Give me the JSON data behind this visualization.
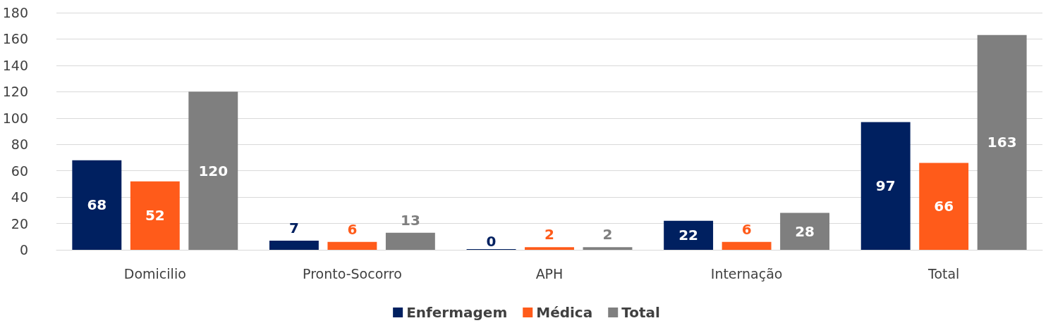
{
  "chart_data": {
    "type": "bar",
    "categories": [
      "Domicilio",
      "Pronto-Socorro",
      "APH",
      "Internação",
      "Total"
    ],
    "series": [
      {
        "name": "Enfermagem",
        "color": "#002060",
        "values": [
          68,
          7,
          0,
          22,
          97
        ]
      },
      {
        "name": "Médica",
        "color": "#ff5b1a",
        "values": [
          52,
          6,
          2,
          6,
          66
        ]
      },
      {
        "name": "Total",
        "color": "#7f7f7f",
        "values": [
          120,
          13,
          2,
          28,
          163
        ]
      }
    ],
    "ylim": [
      0,
      180
    ],
    "yticks": [
      0,
      20,
      40,
      60,
      80,
      100,
      120,
      140,
      160,
      180
    ],
    "grid": "y",
    "legend": "bottom",
    "data_labels": true
  }
}
